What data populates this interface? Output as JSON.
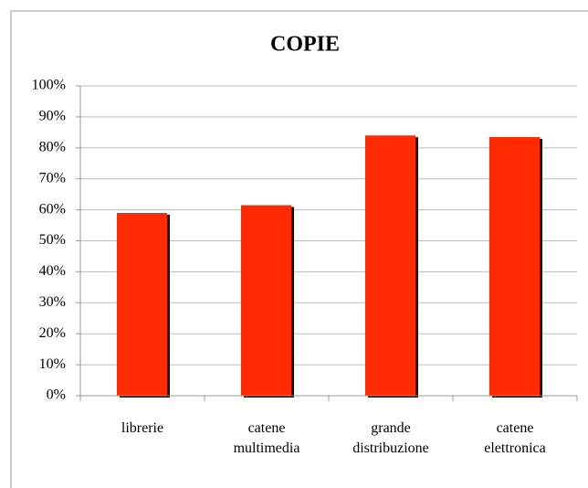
{
  "chart_data": {
    "type": "bar",
    "title": "COPIE",
    "categories": [
      "librerie",
      "catene\nmultimedia",
      "grande\ndistribuzione",
      "catene\nelettronica"
    ],
    "values": [
      59,
      61.5,
      84,
      83.5
    ],
    "color": "#ff2a00",
    "ylim": [
      0,
      100
    ],
    "yticks": [
      {
        "value": 0,
        "label": "0%"
      },
      {
        "value": 10,
        "label": "10%"
      },
      {
        "value": 20,
        "label": "20%"
      },
      {
        "value": 30,
        "label": "30%"
      },
      {
        "value": 40,
        "label": "40%"
      },
      {
        "value": 50,
        "label": "50%"
      },
      {
        "value": 60,
        "label": "60%"
      },
      {
        "value": 70,
        "label": "70%"
      },
      {
        "value": 80,
        "label": "80%"
      },
      {
        "value": 90,
        "label": "90%"
      },
      {
        "value": 100,
        "label": "100%"
      }
    ],
    "grid": true
  }
}
